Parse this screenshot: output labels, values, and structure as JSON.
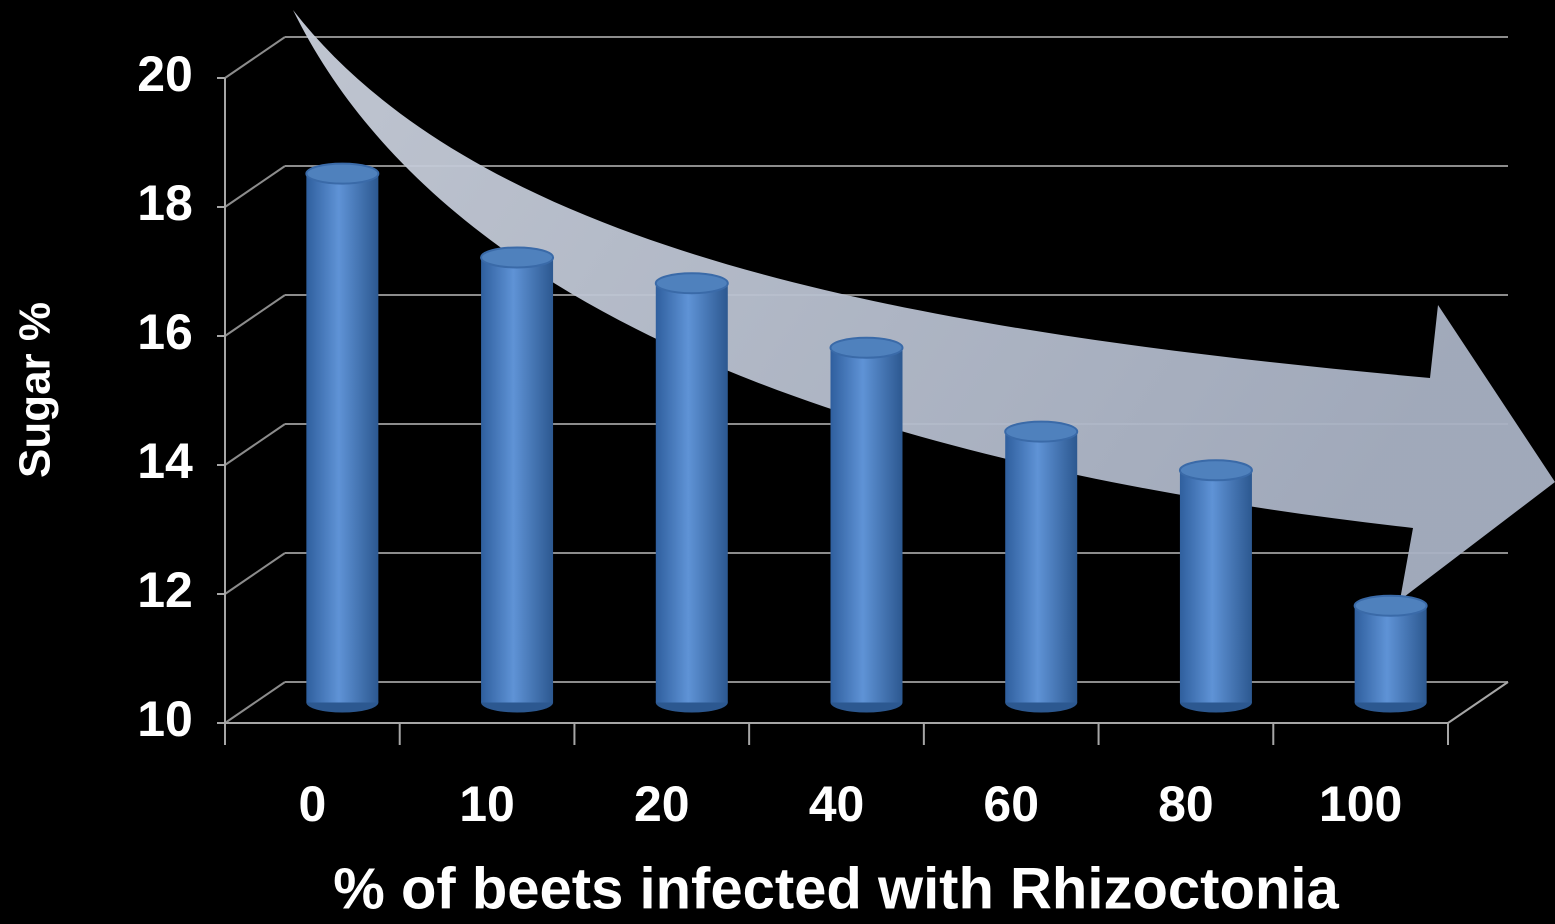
{
  "chart_data": {
    "type": "bar3d",
    "xlabel": "% of beets infected with Rhizoctonia",
    "ylabel": "Sugar %",
    "categories": [
      "0",
      "10",
      "20",
      "40",
      "60",
      "80",
      "100"
    ],
    "values": [
      18.2,
      16.9,
      16.5,
      15.5,
      14.2,
      13.6,
      11.5
    ],
    "color": "#4f81bd",
    "ylim": [
      10,
      20
    ],
    "yticks": [
      10,
      12,
      14,
      16,
      18,
      20
    ],
    "grid": true
  }
}
